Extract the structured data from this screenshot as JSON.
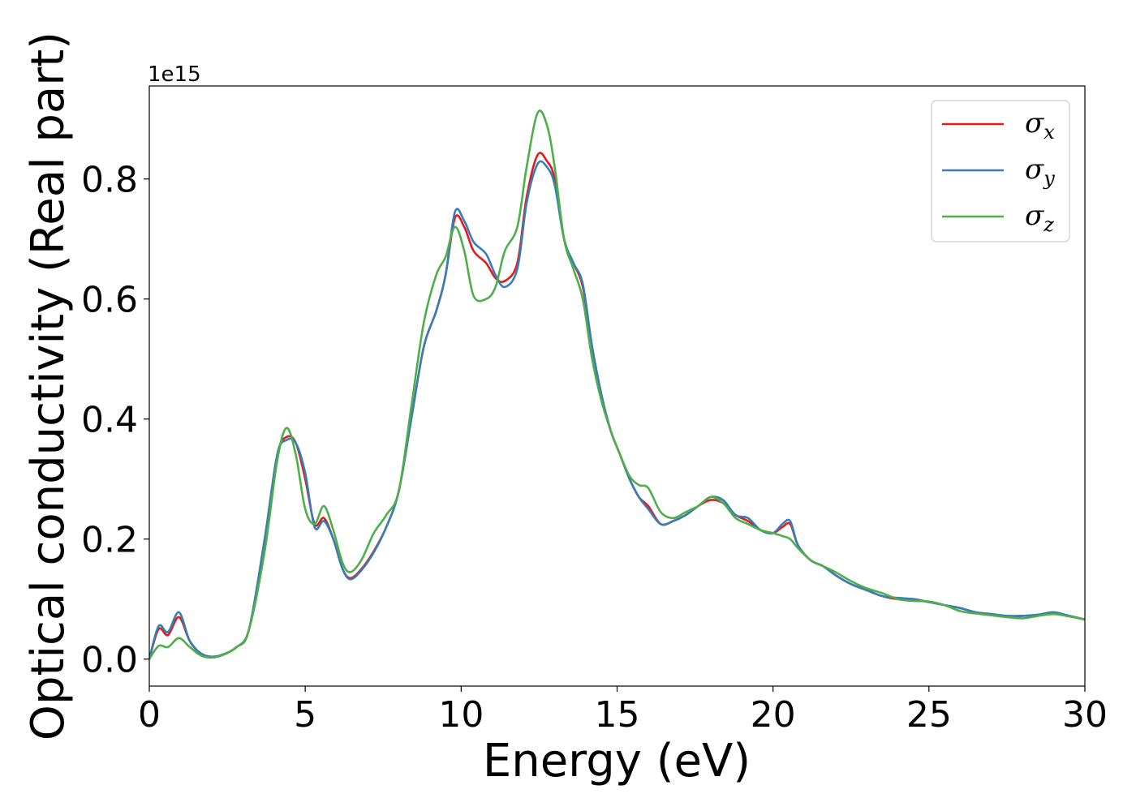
{
  "chart_data": {
    "type": "line",
    "title": "",
    "xlabel": "Energy (eV)",
    "ylabel": "Optical conductivity (Real part)",
    "y_offset_label": "1e15",
    "xlim": [
      0,
      30
    ],
    "ylim": [
      -0.045,
      0.955
    ],
    "x_ticks": [
      0,
      5,
      10,
      15,
      20,
      25,
      30
    ],
    "x_tick_labels": [
      "0",
      "5",
      "10",
      "15",
      "20",
      "25",
      "30"
    ],
    "y_ticks": [
      0.0,
      0.2,
      0.4,
      0.6,
      0.8
    ],
    "y_tick_labels": [
      "0.0",
      "0.2",
      "0.4",
      "0.6",
      "0.8"
    ],
    "grid": false,
    "legend_position": "top-right",
    "series": [
      {
        "name": "σx",
        "legend_symbol": "σ",
        "legend_subscript": "x",
        "color": "#e41a1c",
        "x": [
          0,
          0.3,
          0.6,
          0.95,
          1.3,
          1.7,
          2.2,
          2.8,
          3.2,
          3.7,
          4.1,
          4.4,
          4.7,
          5.0,
          5.3,
          5.6,
          5.9,
          6.2,
          6.45,
          6.8,
          7.2,
          7.6,
          8.0,
          8.4,
          8.8,
          9.2,
          9.5,
          9.8,
          10.1,
          10.4,
          10.8,
          11.1,
          11.4,
          11.8,
          12.1,
          12.45,
          12.75,
          13.0,
          13.3,
          13.6,
          13.9,
          14.2,
          14.5,
          14.8,
          15.1,
          15.4,
          15.7,
          16.0,
          16.4,
          16.8,
          17.2,
          17.6,
          18.0,
          18.4,
          18.8,
          19.2,
          19.6,
          20.0,
          20.3,
          20.55,
          20.8,
          21.2,
          21.6,
          22.0,
          22.5,
          23.0,
          23.5,
          24.0,
          24.5,
          25.0,
          25.5,
          26.0,
          26.5,
          27.0,
          27.5,
          28.0,
          28.5,
          29.0,
          29.5,
          30.0
        ],
        "y": [
          0.0,
          0.05,
          0.04,
          0.07,
          0.03,
          0.008,
          0.005,
          0.02,
          0.05,
          0.2,
          0.34,
          0.37,
          0.36,
          0.3,
          0.225,
          0.235,
          0.2,
          0.15,
          0.135,
          0.15,
          0.18,
          0.22,
          0.28,
          0.4,
          0.52,
          0.58,
          0.64,
          0.735,
          0.72,
          0.68,
          0.66,
          0.635,
          0.63,
          0.66,
          0.77,
          0.84,
          0.83,
          0.8,
          0.7,
          0.66,
          0.62,
          0.52,
          0.44,
          0.38,
          0.34,
          0.3,
          0.27,
          0.255,
          0.225,
          0.23,
          0.24,
          0.255,
          0.265,
          0.26,
          0.24,
          0.23,
          0.215,
          0.21,
          0.22,
          0.225,
          0.19,
          0.165,
          0.155,
          0.14,
          0.125,
          0.115,
          0.105,
          0.1,
          0.1,
          0.095,
          0.09,
          0.085,
          0.078,
          0.075,
          0.072,
          0.072,
          0.074,
          0.076,
          0.072,
          0.066
        ]
      },
      {
        "name": "σy",
        "legend_symbol": "σ",
        "legend_subscript": "y",
        "color": "#377eb8",
        "x": [
          0,
          0.3,
          0.6,
          0.95,
          1.3,
          1.7,
          2.2,
          2.8,
          3.2,
          3.7,
          4.1,
          4.4,
          4.7,
          5.0,
          5.3,
          5.6,
          5.9,
          6.2,
          6.45,
          6.8,
          7.2,
          7.6,
          8.0,
          8.4,
          8.8,
          9.2,
          9.5,
          9.8,
          10.1,
          10.4,
          10.8,
          11.1,
          11.4,
          11.8,
          12.1,
          12.45,
          12.75,
          13.0,
          13.3,
          13.6,
          13.9,
          14.2,
          14.5,
          14.8,
          15.1,
          15.4,
          15.7,
          16.0,
          16.4,
          16.8,
          17.2,
          17.6,
          18.0,
          18.4,
          18.8,
          19.2,
          19.6,
          20.0,
          20.3,
          20.55,
          20.8,
          21.2,
          21.6,
          22.0,
          22.5,
          23.0,
          23.5,
          24.0,
          24.5,
          25.0,
          25.5,
          26.0,
          26.5,
          27.0,
          27.5,
          28.0,
          28.5,
          29.0,
          29.5,
          30.0
        ],
        "y": [
          0.0,
          0.055,
          0.045,
          0.078,
          0.03,
          0.008,
          0.005,
          0.02,
          0.05,
          0.2,
          0.34,
          0.365,
          0.36,
          0.31,
          0.22,
          0.23,
          0.2,
          0.15,
          0.133,
          0.148,
          0.178,
          0.22,
          0.28,
          0.4,
          0.52,
          0.58,
          0.64,
          0.745,
          0.73,
          0.695,
          0.675,
          0.64,
          0.62,
          0.65,
          0.76,
          0.825,
          0.82,
          0.79,
          0.7,
          0.66,
          0.625,
          0.52,
          0.44,
          0.38,
          0.34,
          0.3,
          0.27,
          0.25,
          0.225,
          0.23,
          0.24,
          0.255,
          0.27,
          0.265,
          0.24,
          0.235,
          0.215,
          0.21,
          0.225,
          0.23,
          0.19,
          0.165,
          0.155,
          0.14,
          0.125,
          0.115,
          0.105,
          0.102,
          0.1,
          0.095,
          0.09,
          0.085,
          0.078,
          0.075,
          0.072,
          0.072,
          0.074,
          0.078,
          0.072,
          0.066
        ]
      },
      {
        "name": "σz",
        "legend_symbol": "σ",
        "legend_subscript": "z",
        "color": "#4daf4a",
        "x": [
          0,
          0.3,
          0.6,
          0.95,
          1.3,
          1.7,
          2.2,
          2.8,
          3.2,
          3.7,
          4.1,
          4.4,
          4.7,
          5.0,
          5.3,
          5.6,
          5.9,
          6.2,
          6.45,
          6.8,
          7.2,
          7.6,
          8.0,
          8.4,
          8.8,
          9.2,
          9.5,
          9.8,
          10.1,
          10.4,
          10.8,
          11.1,
          11.4,
          11.8,
          12.1,
          12.45,
          12.75,
          13.0,
          13.3,
          13.6,
          13.9,
          14.2,
          14.5,
          14.8,
          15.1,
          15.4,
          15.7,
          16.0,
          16.4,
          16.8,
          17.2,
          17.6,
          18.0,
          18.4,
          18.8,
          19.2,
          19.6,
          20.0,
          20.3,
          20.55,
          20.8,
          21.2,
          21.6,
          22.0,
          22.5,
          23.0,
          23.5,
          24.0,
          24.5,
          25.0,
          25.5,
          26.0,
          26.5,
          27.0,
          27.5,
          28.0,
          28.5,
          29.0,
          29.5,
          30.0
        ],
        "y": [
          0.0,
          0.022,
          0.02,
          0.035,
          0.02,
          0.005,
          0.004,
          0.02,
          0.05,
          0.18,
          0.33,
          0.385,
          0.34,
          0.25,
          0.225,
          0.255,
          0.215,
          0.16,
          0.145,
          0.165,
          0.21,
          0.24,
          0.28,
          0.42,
          0.56,
          0.64,
          0.67,
          0.72,
          0.68,
          0.605,
          0.6,
          0.62,
          0.68,
          0.72,
          0.82,
          0.91,
          0.89,
          0.82,
          0.7,
          0.65,
          0.6,
          0.5,
          0.43,
          0.38,
          0.34,
          0.305,
          0.29,
          0.285,
          0.245,
          0.235,
          0.245,
          0.255,
          0.27,
          0.26,
          0.235,
          0.225,
          0.215,
          0.21,
          0.205,
          0.2,
          0.185,
          0.165,
          0.155,
          0.145,
          0.13,
          0.118,
          0.11,
          0.1,
          0.097,
          0.096,
          0.09,
          0.08,
          0.076,
          0.073,
          0.07,
          0.068,
          0.072,
          0.075,
          0.071,
          0.066
        ]
      }
    ]
  }
}
